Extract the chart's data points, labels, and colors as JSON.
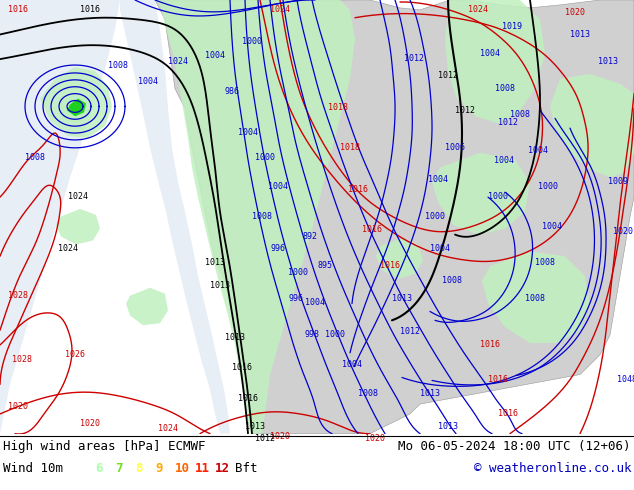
{
  "title_left": "High wind areas [hPa] ECMWF",
  "title_right": "Mo 06-05-2024 18:00 UTC (12+06)",
  "subtitle_left": "Wind 10m",
  "subtitle_right": "© weatheronline.co.uk",
  "legend_numbers": [
    "6",
    "7",
    "8",
    "9",
    "10",
    "11",
    "12"
  ],
  "legend_label": "Bft",
  "legend_colors": [
    "#aaffaa",
    "#77dd22",
    "#ffff44",
    "#ffaa00",
    "#ff6600",
    "#ff2200",
    "#cc0000"
  ],
  "bg_color": "#ffffff",
  "ocean_color": "#e8eef5",
  "land_color": "#d0d0d0",
  "green_wind_color": "#c0f0c0",
  "green_wind_dark": "#00cc00",
  "title_color": "#000000",
  "copyright_color": "#0000bb",
  "label_fontsize": 9,
  "map_fontsize": 6,
  "fig_width": 6.34,
  "fig_height": 4.9,
  "dpi": 100
}
